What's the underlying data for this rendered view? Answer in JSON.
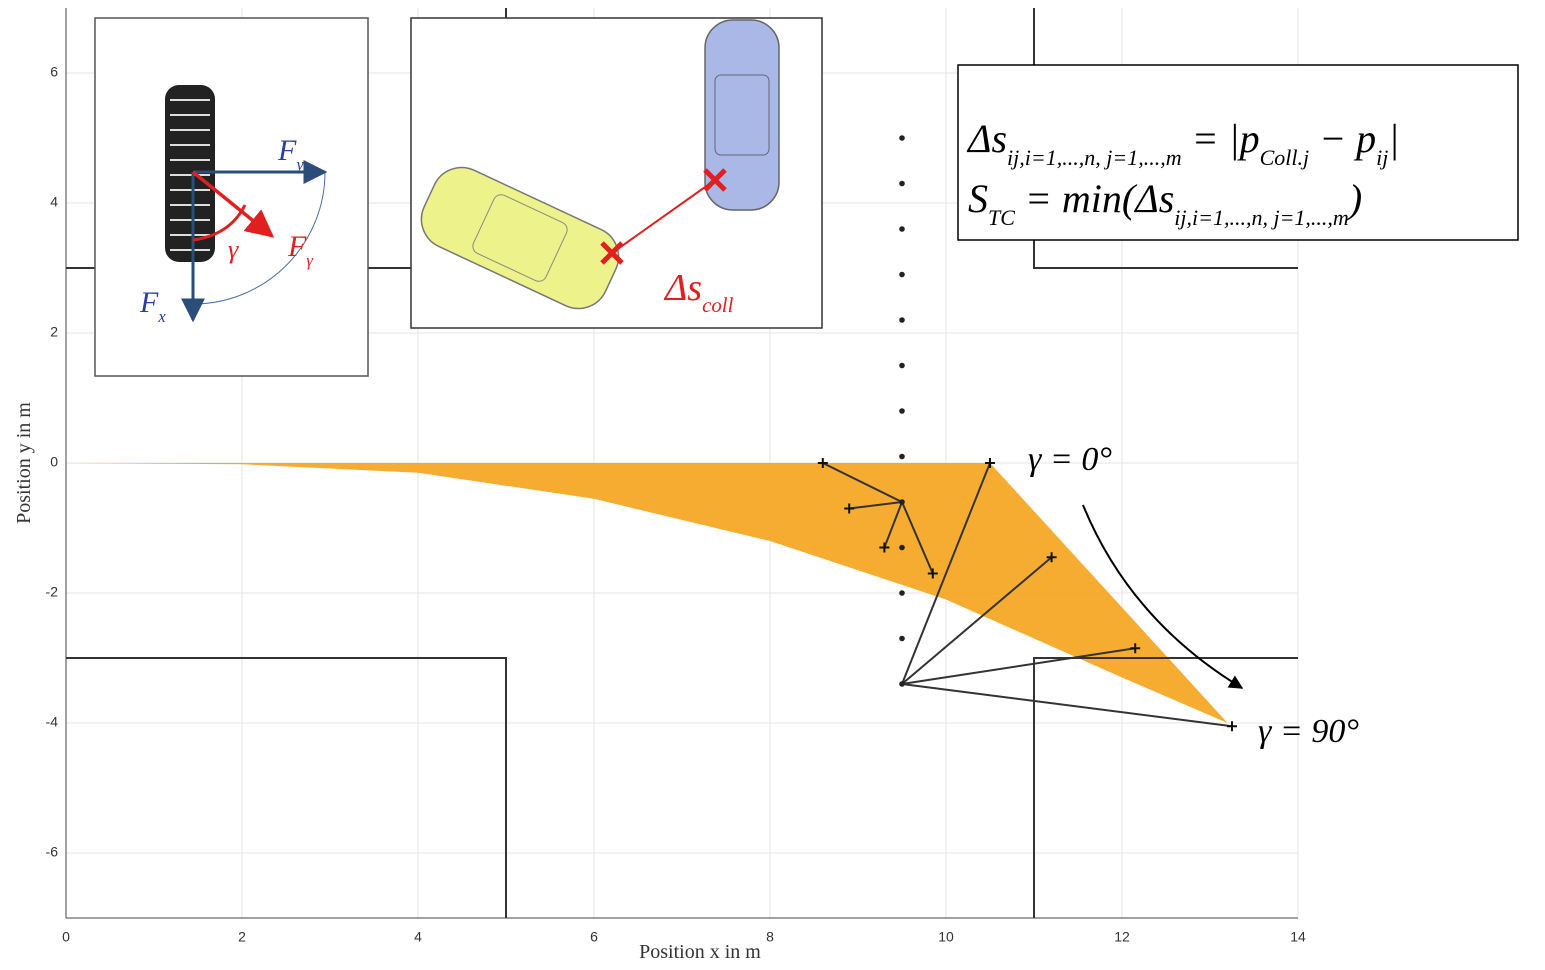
{
  "chart_data": {
    "type": "line",
    "xlabel": "Position x in m",
    "ylabel": "Position y in m",
    "xlim": [
      0,
      14
    ],
    "ylim": [
      -7,
      7
    ],
    "xticks": [
      0,
      2,
      4,
      6,
      8,
      10,
      12,
      14
    ],
    "yticks": [
      -6,
      -4,
      -2,
      0,
      2,
      4,
      6
    ],
    "grid": true,
    "boundary_color": "#333333",
    "boundaries": [
      {
        "x": [
          0,
          5,
          5
        ],
        "values": [
          3,
          3,
          7
        ]
      },
      {
        "x": [
          14,
          11,
          11
        ],
        "values": [
          3,
          3,
          7
        ]
      },
      {
        "x": [
          0,
          5,
          5
        ],
        "values": [
          -3,
          -3,
          -7
        ]
      },
      {
        "x": [
          14,
          11,
          11
        ],
        "values": [
          -3,
          -3,
          -7
        ]
      }
    ],
    "fan": {
      "color": "#f5a31a",
      "x": [
        0,
        2,
        4,
        6,
        8,
        9.5,
        10.5,
        13.2,
        12,
        10,
        8,
        6,
        4,
        2,
        0
      ],
      "values": [
        0,
        0,
        0,
        0,
        0,
        0,
        0,
        -4,
        -3.3,
        -2.1,
        -1.2,
        -0.55,
        -0.15,
        -0.02,
        0
      ]
    },
    "pedestrian": {
      "color": "#222222",
      "x": [
        9.5,
        9.5,
        9.5,
        9.5,
        9.5,
        9.5,
        9.5,
        9.5,
        9.5,
        9.5,
        9.5,
        9.5,
        9.5
      ],
      "values": [
        5,
        4.3,
        3.6,
        2.9,
        2.2,
        1.5,
        0.8,
        0.1,
        -0.6,
        -1.3,
        -2,
        -2.7,
        -3.4
      ]
    },
    "ray_color": "#333333",
    "rays": [
      {
        "x": [
          9.5,
          10.5
        ],
        "values": [
          -3.4,
          0
        ]
      },
      {
        "x": [
          9.5,
          11.2
        ],
        "values": [
          -3.4,
          -1.45
        ]
      },
      {
        "x": [
          9.5,
          12.15
        ],
        "values": [
          -3.4,
          -2.85
        ]
      },
      {
        "x": [
          9.5,
          13.25
        ],
        "values": [
          -3.4,
          -4.05
        ]
      },
      {
        "x": [
          9.5,
          8.6
        ],
        "values": [
          -0.6,
          0
        ]
      },
      {
        "x": [
          9.5,
          8.9
        ],
        "values": [
          -0.6,
          -0.7
        ]
      },
      {
        "x": [
          9.5,
          9.3
        ],
        "values": [
          -0.6,
          -1.3
        ]
      },
      {
        "x": [
          9.5,
          9.85
        ],
        "values": [
          -0.6,
          -1.7
        ]
      }
    ],
    "annotations": {
      "gamma_start": "γ = 0°",
      "gamma_end": "γ = 90°"
    },
    "formula": {
      "line1": [
        {
          "text": "Δs"
        },
        {
          "text": "ij,i=1,...,n, j=1,...,m",
          "sub": true
        },
        {
          "text": " = |"
        },
        {
          "text": "p"
        },
        {
          "text": "Coll.j",
          "sub": true
        },
        {
          "text": " − "
        },
        {
          "text": "p"
        },
        {
          "text": "ij",
          "sub": true
        },
        {
          "text": "|"
        }
      ],
      "line2": [
        {
          "text": "S"
        },
        {
          "text": "TC",
          "sub": true
        },
        {
          "text": " = min(Δs"
        },
        {
          "text": "ij,i=1,...,n, j=1,...,m",
          "sub": true
        },
        {
          "text": ")"
        }
      ]
    },
    "tire_labels": {
      "fy": [
        {
          "text": "F"
        },
        {
          "text": "y",
          "sub": true
        }
      ],
      "fgamma": [
        {
          "text": "F"
        },
        {
          "text": "γ",
          "sub": true
        }
      ],
      "fx": [
        {
          "text": "F"
        },
        {
          "text": "x",
          "sub": true
        }
      ],
      "gamma": [
        {
          "text": "γ"
        }
      ]
    },
    "collision_label": [
      {
        "text": "Δs"
      },
      {
        "text": "coll",
        "sub": true
      }
    ]
  }
}
